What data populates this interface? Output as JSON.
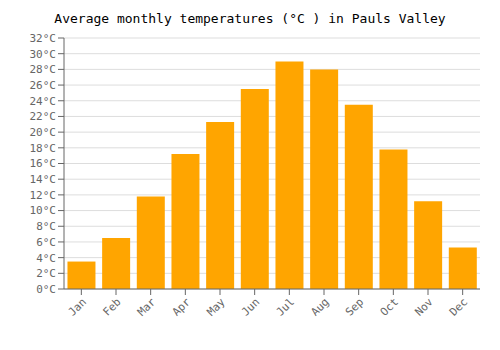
{
  "chart_data": {
    "type": "bar",
    "title": "Average monthly temperatures (°C ) in Pauls Valley",
    "categories": [
      "Jan",
      "Feb",
      "Mar",
      "Apr",
      "May",
      "Jun",
      "Jul",
      "Aug",
      "Sep",
      "Oct",
      "Nov",
      "Dec"
    ],
    "values": [
      3.5,
      6.5,
      11.8,
      17.2,
      21.3,
      25.5,
      29.0,
      28.0,
      23.5,
      17.8,
      11.2,
      5.3
    ],
    "color": "#FFA500",
    "ylim": [
      0,
      32
    ],
    "yticks": [
      {
        "value": 0,
        "label": "0°C"
      },
      {
        "value": 2,
        "label": "2°C"
      },
      {
        "value": 4,
        "label": "4°C"
      },
      {
        "value": 6,
        "label": "6°C"
      },
      {
        "value": 8,
        "label": "8°C"
      },
      {
        "value": 10,
        "label": "10°C"
      },
      {
        "value": 12,
        "label": "12°C"
      },
      {
        "value": 14,
        "label": "14°C"
      },
      {
        "value": 16,
        "label": "16°C"
      },
      {
        "value": 18,
        "label": "18°C"
      },
      {
        "value": 20,
        "label": "20°C"
      },
      {
        "value": 22,
        "label": "22°C"
      },
      {
        "value": 24,
        "label": "24°C"
      },
      {
        "value": 26,
        "label": "26°C"
      },
      {
        "value": 28,
        "label": "28°C"
      },
      {
        "value": 30,
        "label": "30°C"
      },
      {
        "value": 32,
        "label": "32°C"
      }
    ],
    "grid": true
  }
}
